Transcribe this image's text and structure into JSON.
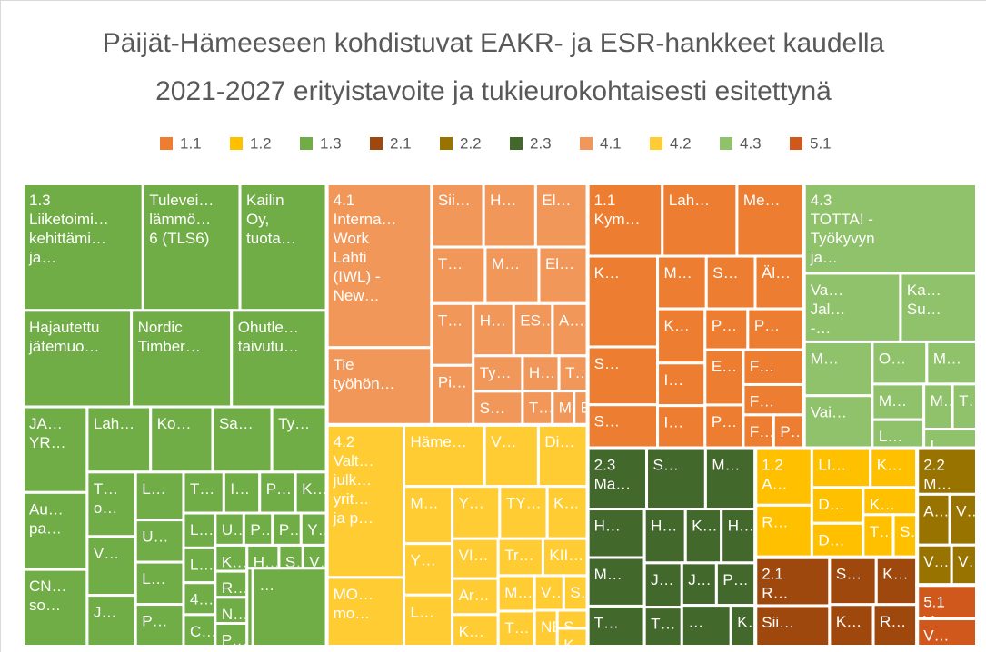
{
  "chart_data": {
    "type": "treemap",
    "title": [
      "Päijät-Hämeeseen kohdistuvat EAKR- ja ESR-hankkeet kaudella",
      "2021-2027 erityistavoite ja tukieurokohtaisesti esitettynä"
    ],
    "series": [
      {
        "name": "1.1",
        "color": "#ED7D31",
        "labels": [
          [
            "Kym…"
          ],
          [
            "Lah…"
          ],
          [
            "Me…"
          ],
          [
            "K…"
          ],
          [
            "S…"
          ],
          [
            "S…"
          ],
          [
            "M…"
          ],
          [
            "S…"
          ],
          [
            "Äl…"
          ],
          [
            "K…"
          ],
          [
            "I…"
          ],
          [
            "I…"
          ],
          [
            "P…"
          ],
          [
            "P…"
          ],
          [
            "E…"
          ],
          [
            "P…"
          ],
          [
            "F…"
          ],
          [
            "F…"
          ],
          [
            "F…"
          ],
          [
            "P…"
          ]
        ],
        "values": [
          59,
          59,
          53,
          69,
          44,
          33,
          28,
          28,
          28,
          28,
          22,
          22,
          19,
          25,
          23,
          18,
          23,
          20,
          11,
          11
        ]
      },
      {
        "name": "1.2",
        "color": "#FFC000",
        "labels": [
          [
            "A…"
          ],
          [
            "R…"
          ],
          [
            "LI…"
          ],
          [
            "K…"
          ],
          [
            "D…"
          ],
          [
            "D…"
          ],
          [
            "K…"
          ],
          [
            "T…"
          ],
          [
            "S…"
          ]
        ],
        "values": [
          35,
          32,
          25,
          20,
          20,
          19,
          16,
          14,
          11
        ]
      },
      {
        "name": "1.3",
        "color": "#70AD47",
        "labels": [
          [
            "Liiketoimi…",
            "kehittämi…",
            "ja…"
          ],
          [
            "Tulevei…",
            "lämmö…",
            "6 (TLS6)"
          ],
          [
            "Kailin",
            "Oy,",
            "tuota…"
          ],
          [
            "Hajautettu",
            "jätemuo…"
          ],
          [
            "Nordic",
            "Timber…"
          ],
          [
            "Ohutle…",
            "taivutu…"
          ],
          [
            "JA…",
            "YR…"
          ],
          [
            "Au…",
            "pa…"
          ],
          [
            "CN…",
            "so…"
          ],
          [
            "Lah…"
          ],
          [
            "Ko…"
          ],
          [
            "Sa…"
          ],
          [
            "Ty…"
          ],
          [
            "T…",
            "o…"
          ],
          [
            "V…"
          ],
          [
            "J…"
          ],
          [
            "L…"
          ],
          [
            "U…"
          ],
          [
            "L…"
          ],
          [
            "P…"
          ],
          [
            "T…"
          ],
          [
            "I…"
          ],
          [
            "P…"
          ],
          [
            "K…"
          ],
          [
            "L…"
          ],
          [
            "L…"
          ],
          [
            "4…"
          ],
          [
            "C…"
          ],
          [
            "U…"
          ],
          [
            "P…"
          ],
          [
            "P…"
          ],
          [
            "Y…"
          ],
          [
            "K…"
          ],
          [
            "R…"
          ],
          [
            "N…"
          ],
          [
            "P…"
          ],
          [
            "H…"
          ],
          [
            "S…"
          ],
          [
            "V…"
          ],
          [
            "P…"
          ],
          [
            "…"
          ]
        ],
        "values": [
          166,
          134,
          120,
          114,
          105,
          100,
          60,
          54,
          54,
          45,
          44,
          42,
          39,
          34,
          31,
          27,
          25,
          22,
          22,
          22,
          18,
          16,
          16,
          14,
          12,
          12,
          11,
          11,
          10,
          10,
          10,
          9,
          9,
          9,
          9,
          8,
          8,
          6,
          6,
          5,
          63
        ]
      },
      {
        "name": "2.1",
        "color": "#9E480E",
        "labels": [
          [
            "R…"
          ],
          [
            "Sii…"
          ],
          [
            "S…"
          ],
          [
            "K…"
          ],
          [
            "K…"
          ],
          [
            "R…"
          ]
        ],
        "values": [
          39,
          33,
          24,
          21,
          20,
          20
        ]
      },
      {
        "name": "2.2",
        "color": "#997300",
        "labels": [
          [
            "M…"
          ],
          [
            "A…"
          ],
          [
            "V…"
          ],
          [
            "V…"
          ],
          [
            "V…"
          ]
        ],
        "values": [
          30,
          18,
          15,
          15,
          11
        ]
      },
      {
        "name": "2.3",
        "color": "#43682B",
        "labels": [
          [
            "Ma…"
          ],
          [
            "S…"
          ],
          [
            "M…"
          ],
          [
            "H…"
          ],
          [
            "M…"
          ],
          [
            "T…"
          ],
          [
            "H…"
          ],
          [
            "K…"
          ],
          [
            "H…"
          ],
          [
            "J…"
          ],
          [
            "T…"
          ],
          [
            "J…"
          ],
          [
            "P…"
          ],
          [
            "…"
          ],
          [
            "K…"
          ]
        ],
        "values": [
          39,
          39,
          33,
          30,
          30,
          25,
          24,
          21,
          20,
          18,
          16,
          16,
          18,
          22,
          11
        ]
      },
      {
        "name": "4.1",
        "color": "#F1975A",
        "labels": [
          [
            "Interna…",
            "Work",
            "Lahti",
            "(IWL) -",
            "New…"
          ],
          [
            "Tie",
            "työhön…"
          ],
          [
            "Sii…"
          ],
          [
            "H…"
          ],
          [
            "El…"
          ],
          [
            "T…"
          ],
          [
            "M…"
          ],
          [
            "El…"
          ],
          [
            "T…"
          ],
          [
            "Pi…"
          ],
          [
            "H…"
          ],
          [
            "ES…"
          ],
          [
            "A…"
          ],
          [
            "Ty…"
          ],
          [
            "S…"
          ],
          [
            "H…"
          ],
          [
            "T…"
          ],
          [
            "T…"
          ],
          [
            "M…"
          ],
          [
            "E…"
          ]
        ],
        "values": [
          187,
          88,
          36,
          36,
          36,
          33,
          33,
          30,
          28,
          27,
          23,
          22,
          20,
          19,
          18,
          14,
          11,
          11,
          8,
          5
        ]
      },
      {
        "name": "4.2",
        "color": "#FFCD33",
        "labels": [
          [
            "Valt…",
            "julk…",
            "yrit…",
            "ja p…"
          ],
          [
            "MO…",
            "mo…"
          ],
          [
            "Häme…"
          ],
          [
            "V…"
          ],
          [
            "Di…"
          ],
          [
            "M…"
          ],
          [
            "Y…"
          ],
          [
            "L…"
          ],
          [
            "Y…"
          ],
          [
            "TY…"
          ],
          [
            "K…"
          ],
          [
            "VI…"
          ],
          [
            "Ar…"
          ],
          [
            "K…"
          ],
          [
            "Tr…"
          ],
          [
            "KII…"
          ],
          [
            "M…"
          ],
          [
            "T…"
          ],
          [
            "V…"
          ],
          [
            "S…"
          ],
          [
            "NE…"
          ],
          [
            "S…"
          ],
          [
            "K…"
          ]
        ],
        "values": [
          128,
          58,
          54,
          36,
          33,
          30,
          27,
          27,
          27,
          27,
          23,
          20,
          18,
          16,
          18,
          18,
          14,
          14,
          11,
          9,
          9,
          6,
          6
        ]
      },
      {
        "name": "4.3",
        "color": "#8FC26A",
        "labels": [
          [
            "TOTTA! -",
            "Työkyvyn",
            "ja…"
          ],
          [
            "Va…",
            "Jal…",
            "-…"
          ],
          [
            "Ka…",
            "Su…"
          ],
          [
            "M…"
          ],
          [
            "Vai…"
          ],
          [
            "O…"
          ],
          [
            "M…"
          ],
          [
            "M…"
          ],
          [
            "L…"
          ],
          [
            "M…"
          ],
          [
            "T…"
          ],
          [
            "L…"
          ]
        ],
        "values": [
          169,
          72,
          57,
          40,
          39,
          25,
          23,
          20,
          16,
          14,
          12,
          11
        ]
      },
      {
        "name": "5.1",
        "color": "#D0581D",
        "labels": [
          [
            "V…"
          ],
          [
            "V…"
          ]
        ],
        "values": [
          22,
          18
        ]
      }
    ]
  }
}
